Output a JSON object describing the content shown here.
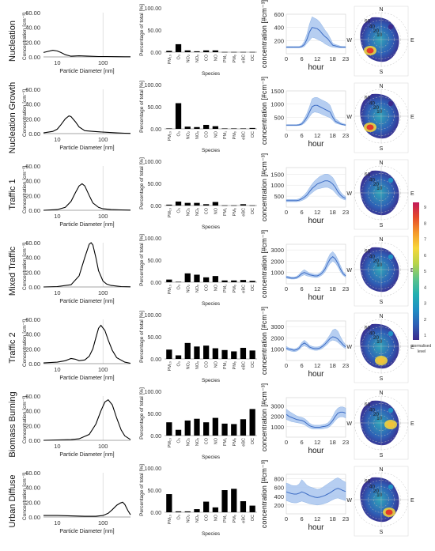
{
  "legend": {
    "ticks": [
      "9",
      "8",
      "7",
      "6",
      "5",
      "4",
      "3",
      "2",
      "1"
    ],
    "label_line1": "normalised",
    "label_line2": "level",
    "colors": [
      "#3b2a8c",
      "#2e5fb5",
      "#1f8fc4",
      "#23b0b0",
      "#5cc38a",
      "#b8d44a",
      "#f7d73a",
      "#f59a2a",
      "#e64b2a",
      "#c21a5a"
    ]
  },
  "axes_text": {
    "psd_xlabel": "Particle Diameter [nm]",
    "psd_ylabel": "Concentration [cm⁻³]",
    "psd_xticks": [
      "10",
      "100"
    ],
    "pct_xlabel": "Species",
    "pct_ylabel": "Percentage of total [%]",
    "diur_xlabel": "hour",
    "diur_ylabel": "concentration [#cm⁻³]",
    "diur_xticks": [
      "0",
      "6",
      "12",
      "18",
      "23"
    ],
    "polar_N": "N",
    "polar_E": "E",
    "polar_S": "S",
    "polar_W": "W",
    "polar_rings": [
      "60",
      "40",
      "20",
      "10"
    ]
  },
  "chart_data": [
    {
      "type": "line",
      "name": "Nucleation",
      "psd": {
        "xscale": "log",
        "ylim": [
          0,
          60
        ],
        "yticks": [
          "0.00",
          "20.00",
          "40.00",
          "60.00"
        ],
        "x": [
          5,
          8,
          10,
          12,
          15,
          20,
          30,
          50,
          80,
          120,
          200,
          300,
          400
        ],
        "y": [
          6,
          9,
          8,
          6,
          3,
          1,
          1.5,
          1,
          0.5,
          0.5,
          0.3,
          0.2,
          0.2
        ]
      },
      "species": {
        "categories": [
          "PM₁₀",
          "O₃",
          "NO₂",
          "NOₓ",
          "CO",
          "NO",
          "PM₁",
          "PM₉",
          "eBC",
          "OC"
        ],
        "values": [
          3,
          18,
          4,
          2,
          4,
          4,
          0.5,
          0.5,
          0.5,
          0.5
        ],
        "ylim": [
          0,
          100
        ],
        "yticks": [
          "0.00",
          "50.00",
          "100.00"
        ]
      },
      "diurnal": {
        "ylim": [
          0,
          600
        ],
        "yticks": [
          "200",
          "400",
          "600"
        ],
        "mean": [
          100,
          100,
          100,
          100,
          100,
          100,
          110,
          140,
          220,
          330,
          400,
          390,
          380,
          350,
          300,
          260,
          230,
          180,
          130,
          120,
          110,
          100,
          100,
          100
        ],
        "lower": [
          90,
          90,
          90,
          90,
          90,
          90,
          95,
          110,
          160,
          200,
          250,
          240,
          220,
          200,
          180,
          150,
          130,
          110,
          100,
          95,
          90,
          90,
          90,
          90
        ],
        "upper": [
          110,
          110,
          110,
          110,
          110,
          110,
          130,
          190,
          300,
          450,
          560,
          540,
          520,
          480,
          420,
          360,
          310,
          240,
          160,
          140,
          130,
          115,
          110,
          110
        ]
      },
      "polar": {
        "hotspot": "southwest",
        "hot_level": 9
      }
    },
    {
      "type": "line",
      "name": "Nucleation Growth",
      "psd": {
        "xscale": "log",
        "ylim": [
          0,
          60
        ],
        "yticks": [
          "0.00",
          "20.00",
          "40.00",
          "60.00"
        ],
        "x": [
          5,
          8,
          10,
          12,
          15,
          18,
          20,
          25,
          30,
          40,
          60,
          100,
          200,
          300,
          400
        ],
        "y": [
          1,
          3,
          6,
          12,
          20,
          24,
          23,
          16,
          9,
          4,
          3,
          2,
          1,
          0.5,
          0.3
        ]
      },
      "species": {
        "categories": [
          "PM₁₀",
          "O₃",
          "NO₂",
          "NOₓ",
          "CO",
          "NO",
          "PM₁",
          "PM₉",
          "eBC",
          "OC"
        ],
        "values": [
          1,
          58,
          5,
          4,
          9,
          6,
          1,
          1,
          1,
          2
        ],
        "ylim": [
          0,
          100
        ],
        "yticks": [
          "0.00",
          "50.00",
          "100.00"
        ]
      },
      "diurnal": {
        "ylim": [
          0,
          1500
        ],
        "yticks": [
          "500",
          "1000",
          "1500"
        ],
        "mean": [
          200,
          200,
          200,
          200,
          200,
          210,
          250,
          350,
          500,
          700,
          900,
          950,
          950,
          900,
          850,
          800,
          750,
          700,
          500,
          350,
          300,
          250,
          220,
          200
        ],
        "lower": [
          180,
          180,
          180,
          180,
          180,
          190,
          210,
          270,
          380,
          520,
          650,
          700,
          680,
          650,
          600,
          560,
          520,
          480,
          380,
          280,
          250,
          220,
          200,
          180
        ],
        "upper": [
          220,
          220,
          220,
          220,
          220,
          240,
          300,
          450,
          650,
          900,
          1200,
          1250,
          1250,
          1200,
          1150,
          1100,
          1050,
          950,
          700,
          450,
          380,
          300,
          260,
          230
        ]
      },
      "polar": {
        "hotspot": "southwest",
        "hot_level": 8
      }
    },
    {
      "type": "line",
      "name": "Traffic 1",
      "psd": {
        "xscale": "log",
        "ylim": [
          0,
          60
        ],
        "yticks": [
          "0.00",
          "20.00",
          "40.00",
          "60.00"
        ],
        "x": [
          5,
          10,
          15,
          20,
          25,
          30,
          35,
          40,
          50,
          60,
          80,
          100,
          150,
          250,
          400
        ],
        "y": [
          0,
          1,
          4,
          12,
          24,
          33,
          36,
          33,
          20,
          10,
          4,
          2,
          1,
          0.5,
          0.2
        ]
      },
      "species": {
        "categories": [
          "PM₁₀",
          "O₃",
          "NO₂",
          "NOₓ",
          "CO",
          "NO",
          "PM₁",
          "PM₉",
          "eBC",
          "OC"
        ],
        "values": [
          2,
          9,
          6,
          6,
          3,
          8,
          0.5,
          0.5,
          3,
          0.5
        ],
        "ylim": [
          0,
          100
        ],
        "yticks": [
          "0.00",
          "50.00",
          "100.00"
        ]
      },
      "diurnal": {
        "ylim": [
          0,
          1800
        ],
        "yticks": [
          "500",
          "1000",
          "1500"
        ],
        "mean": [
          300,
          300,
          300,
          300,
          300,
          320,
          380,
          450,
          550,
          700,
          850,
          950,
          1050,
          1100,
          1150,
          1200,
          1200,
          1150,
          1050,
          900,
          700,
          550,
          450,
          400
        ],
        "lower": [
          250,
          250,
          250,
          250,
          250,
          260,
          300,
          350,
          430,
          550,
          650,
          750,
          820,
          850,
          880,
          900,
          900,
          850,
          780,
          650,
          520,
          420,
          360,
          320
        ],
        "upper": [
          350,
          350,
          350,
          350,
          350,
          380,
          460,
          560,
          700,
          880,
          1050,
          1200,
          1300,
          1400,
          1450,
          1500,
          1500,
          1450,
          1350,
          1150,
          900,
          700,
          560,
          480
        ]
      },
      "polar": {
        "hotspot": "none",
        "hot_level": 3
      }
    },
    {
      "type": "line",
      "name": "Mixed Traffic",
      "psd": {
        "xscale": "log",
        "ylim": [
          0,
          60
        ],
        "yticks": [
          "0.00",
          "20.00",
          "40.00",
          "60.00"
        ],
        "x": [
          5,
          10,
          20,
          30,
          40,
          50,
          55,
          60,
          70,
          80,
          100,
          120,
          150,
          250,
          400
        ],
        "y": [
          0,
          0.5,
          3,
          15,
          40,
          58,
          60,
          57,
          40,
          22,
          8,
          4,
          2,
          0.5,
          0.2
        ]
      },
      "species": {
        "categories": [
          "PM₁₀",
          "O₃",
          "NO₂",
          "NOₓ",
          "CO",
          "NO",
          "PM₁",
          "PM₉",
          "eBC",
          "OC"
        ],
        "values": [
          6,
          1,
          20,
          17,
          11,
          14,
          4,
          4,
          5,
          3
        ],
        "ylim": [
          0,
          100
        ],
        "yticks": [
          "0.00",
          "50.00",
          "100.00"
        ]
      },
      "diurnal": {
        "ylim": [
          0,
          3500
        ],
        "yticks": [
          "1000",
          "2000",
          "3000"
        ],
        "mean": [
          600,
          550,
          500,
          500,
          550,
          700,
          900,
          1000,
          900,
          800,
          750,
          700,
          700,
          800,
          1000,
          1300,
          1800,
          2200,
          2400,
          2200,
          1800,
          1300,
          900,
          700
        ],
        "lower": [
          500,
          450,
          420,
          420,
          450,
          550,
          700,
          800,
          700,
          650,
          600,
          560,
          560,
          650,
          800,
          1050,
          1450,
          1800,
          2000,
          1850,
          1500,
          1050,
          750,
          580
        ],
        "upper": [
          700,
          650,
          600,
          600,
          650,
          850,
          1100,
          1250,
          1100,
          950,
          900,
          850,
          850,
          950,
          1200,
          1600,
          2200,
          2650,
          2850,
          2600,
          2150,
          1600,
          1100,
          850
        ]
      },
      "polar": {
        "hotspot": "none",
        "hot_level": 3
      }
    },
    {
      "type": "line",
      "name": "Traffic 2",
      "psd": {
        "xscale": "log",
        "ylim": [
          0,
          60
        ],
        "yticks": [
          "0.00",
          "20.00",
          "40.00",
          "60.00"
        ],
        "x": [
          5,
          10,
          15,
          20,
          25,
          30,
          40,
          50,
          60,
          70,
          80,
          90,
          110,
          130,
          160,
          200,
          300,
          400
        ],
        "y": [
          1,
          2,
          4,
          7,
          6,
          4,
          5,
          10,
          20,
          35,
          48,
          52,
          45,
          32,
          18,
          8,
          2,
          0.5
        ]
      },
      "species": {
        "categories": [
          "PM₁₀",
          "O₃",
          "NO₂",
          "NOₓ",
          "CO",
          "NO",
          "PM₁",
          "PM₉",
          "eBC",
          "OC"
        ],
        "values": [
          21,
          8,
          36,
          28,
          30,
          24,
          20,
          17,
          25,
          19
        ],
        "ylim": [
          0,
          100
        ],
        "yticks": [
          "0.00",
          "50.00",
          "100.00"
        ]
      },
      "diurnal": {
        "ylim": [
          0,
          3500
        ],
        "yticks": [
          "1000",
          "2000",
          "3000"
        ],
        "mean": [
          1100,
          1000,
          950,
          900,
          950,
          1100,
          1400,
          1550,
          1400,
          1200,
          1100,
          1050,
          1050,
          1100,
          1250,
          1450,
          1700,
          1950,
          2100,
          2050,
          1900,
          1650,
          1400,
          1200
        ],
        "lower": [
          950,
          880,
          820,
          780,
          820,
          950,
          1200,
          1300,
          1200,
          1050,
          950,
          900,
          900,
          950,
          1080,
          1250,
          1450,
          1700,
          1800,
          1750,
          1600,
          1400,
          1200,
          1050
        ],
        "upper": [
          1250,
          1120,
          1080,
          1020,
          1080,
          1250,
          1600,
          1800,
          1600,
          1350,
          1250,
          1200,
          1200,
          1250,
          1420,
          1650,
          1950,
          2300,
          2700,
          2800,
          2600,
          2100,
          1700,
          1400
        ]
      },
      "polar": {
        "hotspot": "south",
        "hot_level": 6
      }
    },
    {
      "type": "line",
      "name": "Biomass Burning",
      "psd": {
        "xscale": "log",
        "ylim": [
          0,
          60
        ],
        "yticks": [
          "0.00",
          "20.00",
          "40.00",
          "60.00"
        ],
        "x": [
          5,
          10,
          20,
          30,
          50,
          70,
          90,
          110,
          130,
          160,
          200,
          250,
          300,
          400
        ],
        "y": [
          0,
          0.5,
          1,
          2,
          8,
          22,
          40,
          52,
          55,
          48,
          30,
          14,
          6,
          1
        ]
      },
      "species": {
        "categories": [
          "PM₁₀",
          "O₃",
          "NO₂",
          "NOₓ",
          "CO",
          "NO",
          "PM₁",
          "PM₉",
          "eBC",
          "OC"
        ],
        "values": [
          30,
          13,
          34,
          38,
          30,
          40,
          27,
          26,
          37,
          60
        ],
        "ylim": [
          0,
          100
        ],
        "yticks": [
          "0.00",
          "50.00",
          "100.00"
        ]
      },
      "diurnal": {
        "ylim": [
          0,
          3800
        ],
        "yticks": [
          "1000",
          "2000",
          "3000"
        ],
        "mean": [
          2200,
          2000,
          1900,
          1800,
          1700,
          1650,
          1600,
          1500,
          1300,
          1100,
          1000,
          950,
          950,
          950,
          1000,
          1050,
          1100,
          1300,
          1600,
          2000,
          2300,
          2400,
          2400,
          2300
        ],
        "lower": [
          1700,
          1600,
          1500,
          1450,
          1400,
          1350,
          1300,
          1200,
          1050,
          900,
          800,
          780,
          780,
          780,
          800,
          850,
          900,
          1050,
          1300,
          1600,
          1850,
          1950,
          1950,
          1850
        ],
        "upper": [
          2700,
          2500,
          2350,
          2200,
          2050,
          1950,
          1900,
          1800,
          1600,
          1350,
          1200,
          1150,
          1150,
          1150,
          1200,
          1250,
          1350,
          1600,
          2000,
          2500,
          2800,
          2900,
          2900,
          2800
        ]
      },
      "polar": {
        "hotspot": "east",
        "hot_level": 7
      }
    },
    {
      "type": "line",
      "name": "Urban Diffuse",
      "psd": {
        "xscale": "log",
        "ylim": [
          0,
          60
        ],
        "yticks": [
          "0.00",
          "20.00",
          "40.00",
          "60.00"
        ],
        "x": [
          5,
          10,
          20,
          40,
          70,
          100,
          130,
          160,
          200,
          240,
          270,
          300,
          350,
          400
        ],
        "y": [
          2,
          2,
          1.5,
          1,
          1,
          2,
          5,
          10,
          16,
          19,
          20,
          17,
          9,
          3
        ]
      },
      "species": {
        "categories": [
          "PM₁₀",
          "O₃",
          "NO₂",
          "NOₓ",
          "CO",
          "NO",
          "PM₁",
          "PM₉",
          "eBC",
          "OC"
        ],
        "values": [
          41,
          2,
          2,
          7,
          24,
          11,
          50,
          53,
          25,
          15
        ],
        "ylim": [
          0,
          100
        ],
        "yticks": [
          "0.00",
          "50.00",
          "100.00"
        ]
      },
      "diurnal": {
        "ylim": [
          0,
          900
        ],
        "yticks": [
          "200",
          "400",
          "600",
          "800"
        ],
        "mean": [
          500,
          480,
          460,
          450,
          450,
          470,
          500,
          480,
          450,
          420,
          400,
          380,
          370,
          380,
          400,
          420,
          450,
          480,
          520,
          560,
          580,
          560,
          530,
          510
        ],
        "lower": [
          300,
          280,
          260,
          250,
          250,
          270,
          290,
          270,
          250,
          230,
          220,
          210,
          200,
          210,
          220,
          240,
          260,
          290,
          320,
          350,
          360,
          340,
          320,
          300
        ],
        "upper": [
          700,
          680,
          650,
          640,
          640,
          680,
          780,
          720,
          650,
          620,
          600,
          580,
          560,
          570,
          600,
          640,
          680,
          720,
          760,
          800,
          820,
          790,
          750,
          720
        ]
      },
      "polar": {
        "hotspot": "southeast",
        "hot_level": 9
      }
    }
  ]
}
